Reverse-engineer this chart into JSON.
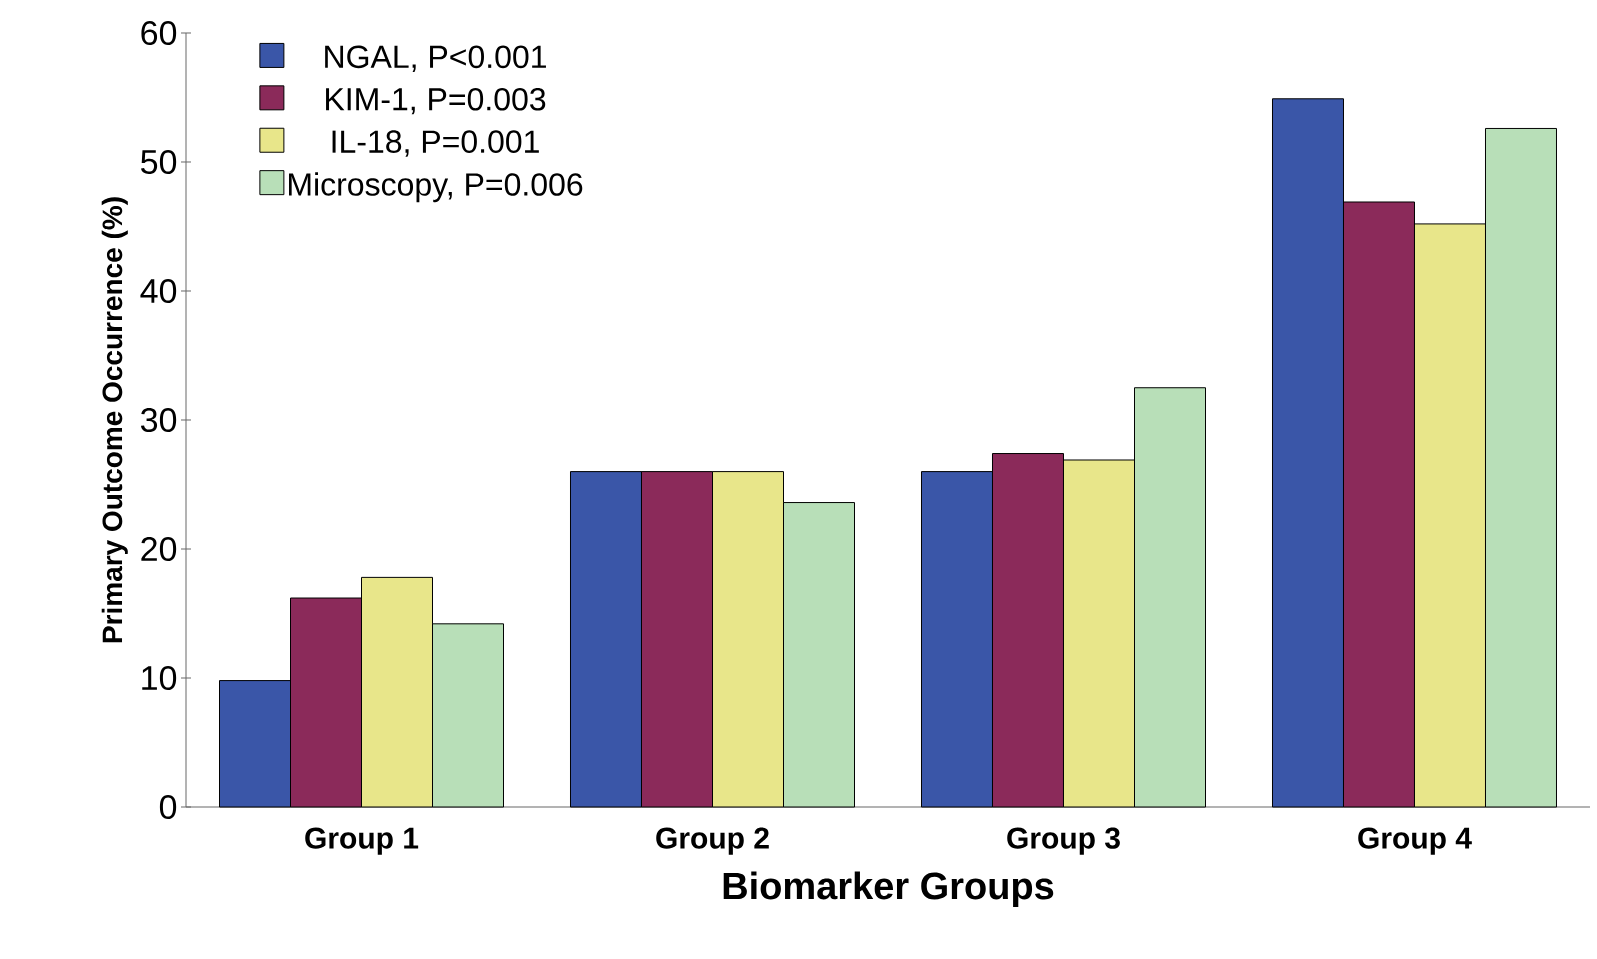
{
  "chart_data": {
    "type": "bar",
    "xlabel": "Biomarker Groups",
    "ylabel": "Primary Outcome Occurrence (%)",
    "categories": [
      "Group 1",
      "Group 2",
      "Group 3",
      "Group 4"
    ],
    "series": [
      {
        "name": "NGAL, P<0.001",
        "color": "#3a56a8",
        "values": [
          9.8,
          26,
          26,
          54.9
        ]
      },
      {
        "name": "KIM-1, P=0.003",
        "color": "#8b2a5a",
        "values": [
          16.2,
          26,
          27.4,
          46.9
        ]
      },
      {
        "name": "IL-18, P=0.001",
        "color": "#e8e68a",
        "values": [
          17.8,
          26,
          26.9,
          45.2
        ]
      },
      {
        "name": "Microscopy, P=0.006",
        "color": "#b8dfb8",
        "values": [
          14.2,
          23.6,
          32.5,
          52.6
        ]
      }
    ],
    "ylim": [
      0,
      60
    ],
    "yticks": [
      0,
      10,
      20,
      30,
      40,
      50,
      60
    ],
    "legend": "top left"
  }
}
